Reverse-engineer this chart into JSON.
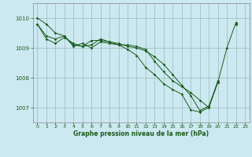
{
  "title": "Graphe pression niveau de la mer (hPa)",
  "bg_color": "#cce8f0",
  "line_color": "#1a5c1a",
  "grid_color": "#99bbbb",
  "x_ticks": [
    0,
    1,
    2,
    3,
    4,
    5,
    6,
    7,
    8,
    9,
    10,
    11,
    12,
    13,
    14,
    15,
    16,
    17,
    18,
    19,
    20,
    21,
    22,
    23
  ],
  "ylim": [
    1006.5,
    1010.5
  ],
  "yticks": [
    1007,
    1008,
    1009,
    1010
  ],
  "line1": [
    1010.0,
    1009.8,
    1009.5,
    1009.4,
    1009.05,
    1009.15,
    1009.0,
    1009.2,
    1009.15,
    1009.1,
    1009.1,
    1009.05,
    1008.95,
    1008.55,
    1008.2,
    1007.9,
    1007.7,
    1007.5,
    1007.25,
    1007.0,
    1007.85,
    1009.0,
    1009.85,
    null
  ],
  "line2": [
    1009.8,
    1009.4,
    1009.3,
    1009.4,
    1009.1,
    1009.05,
    1009.1,
    1009.3,
    1009.2,
    1009.15,
    1009.05,
    1009.0,
    1008.9,
    1008.7,
    1008.45,
    1008.1,
    1007.75,
    1007.4,
    1006.9,
    1007.05,
    1007.85,
    null,
    1009.8,
    null
  ],
  "line3": [
    1009.8,
    1009.3,
    1009.15,
    1009.35,
    1009.15,
    1009.05,
    1009.25,
    1009.25,
    1009.2,
    1009.1,
    1008.95,
    1008.75,
    1008.35,
    1008.1,
    1007.8,
    1007.6,
    1007.45,
    1006.92,
    1006.85,
    1007.0,
    1007.9,
    null,
    1009.8,
    null
  ]
}
